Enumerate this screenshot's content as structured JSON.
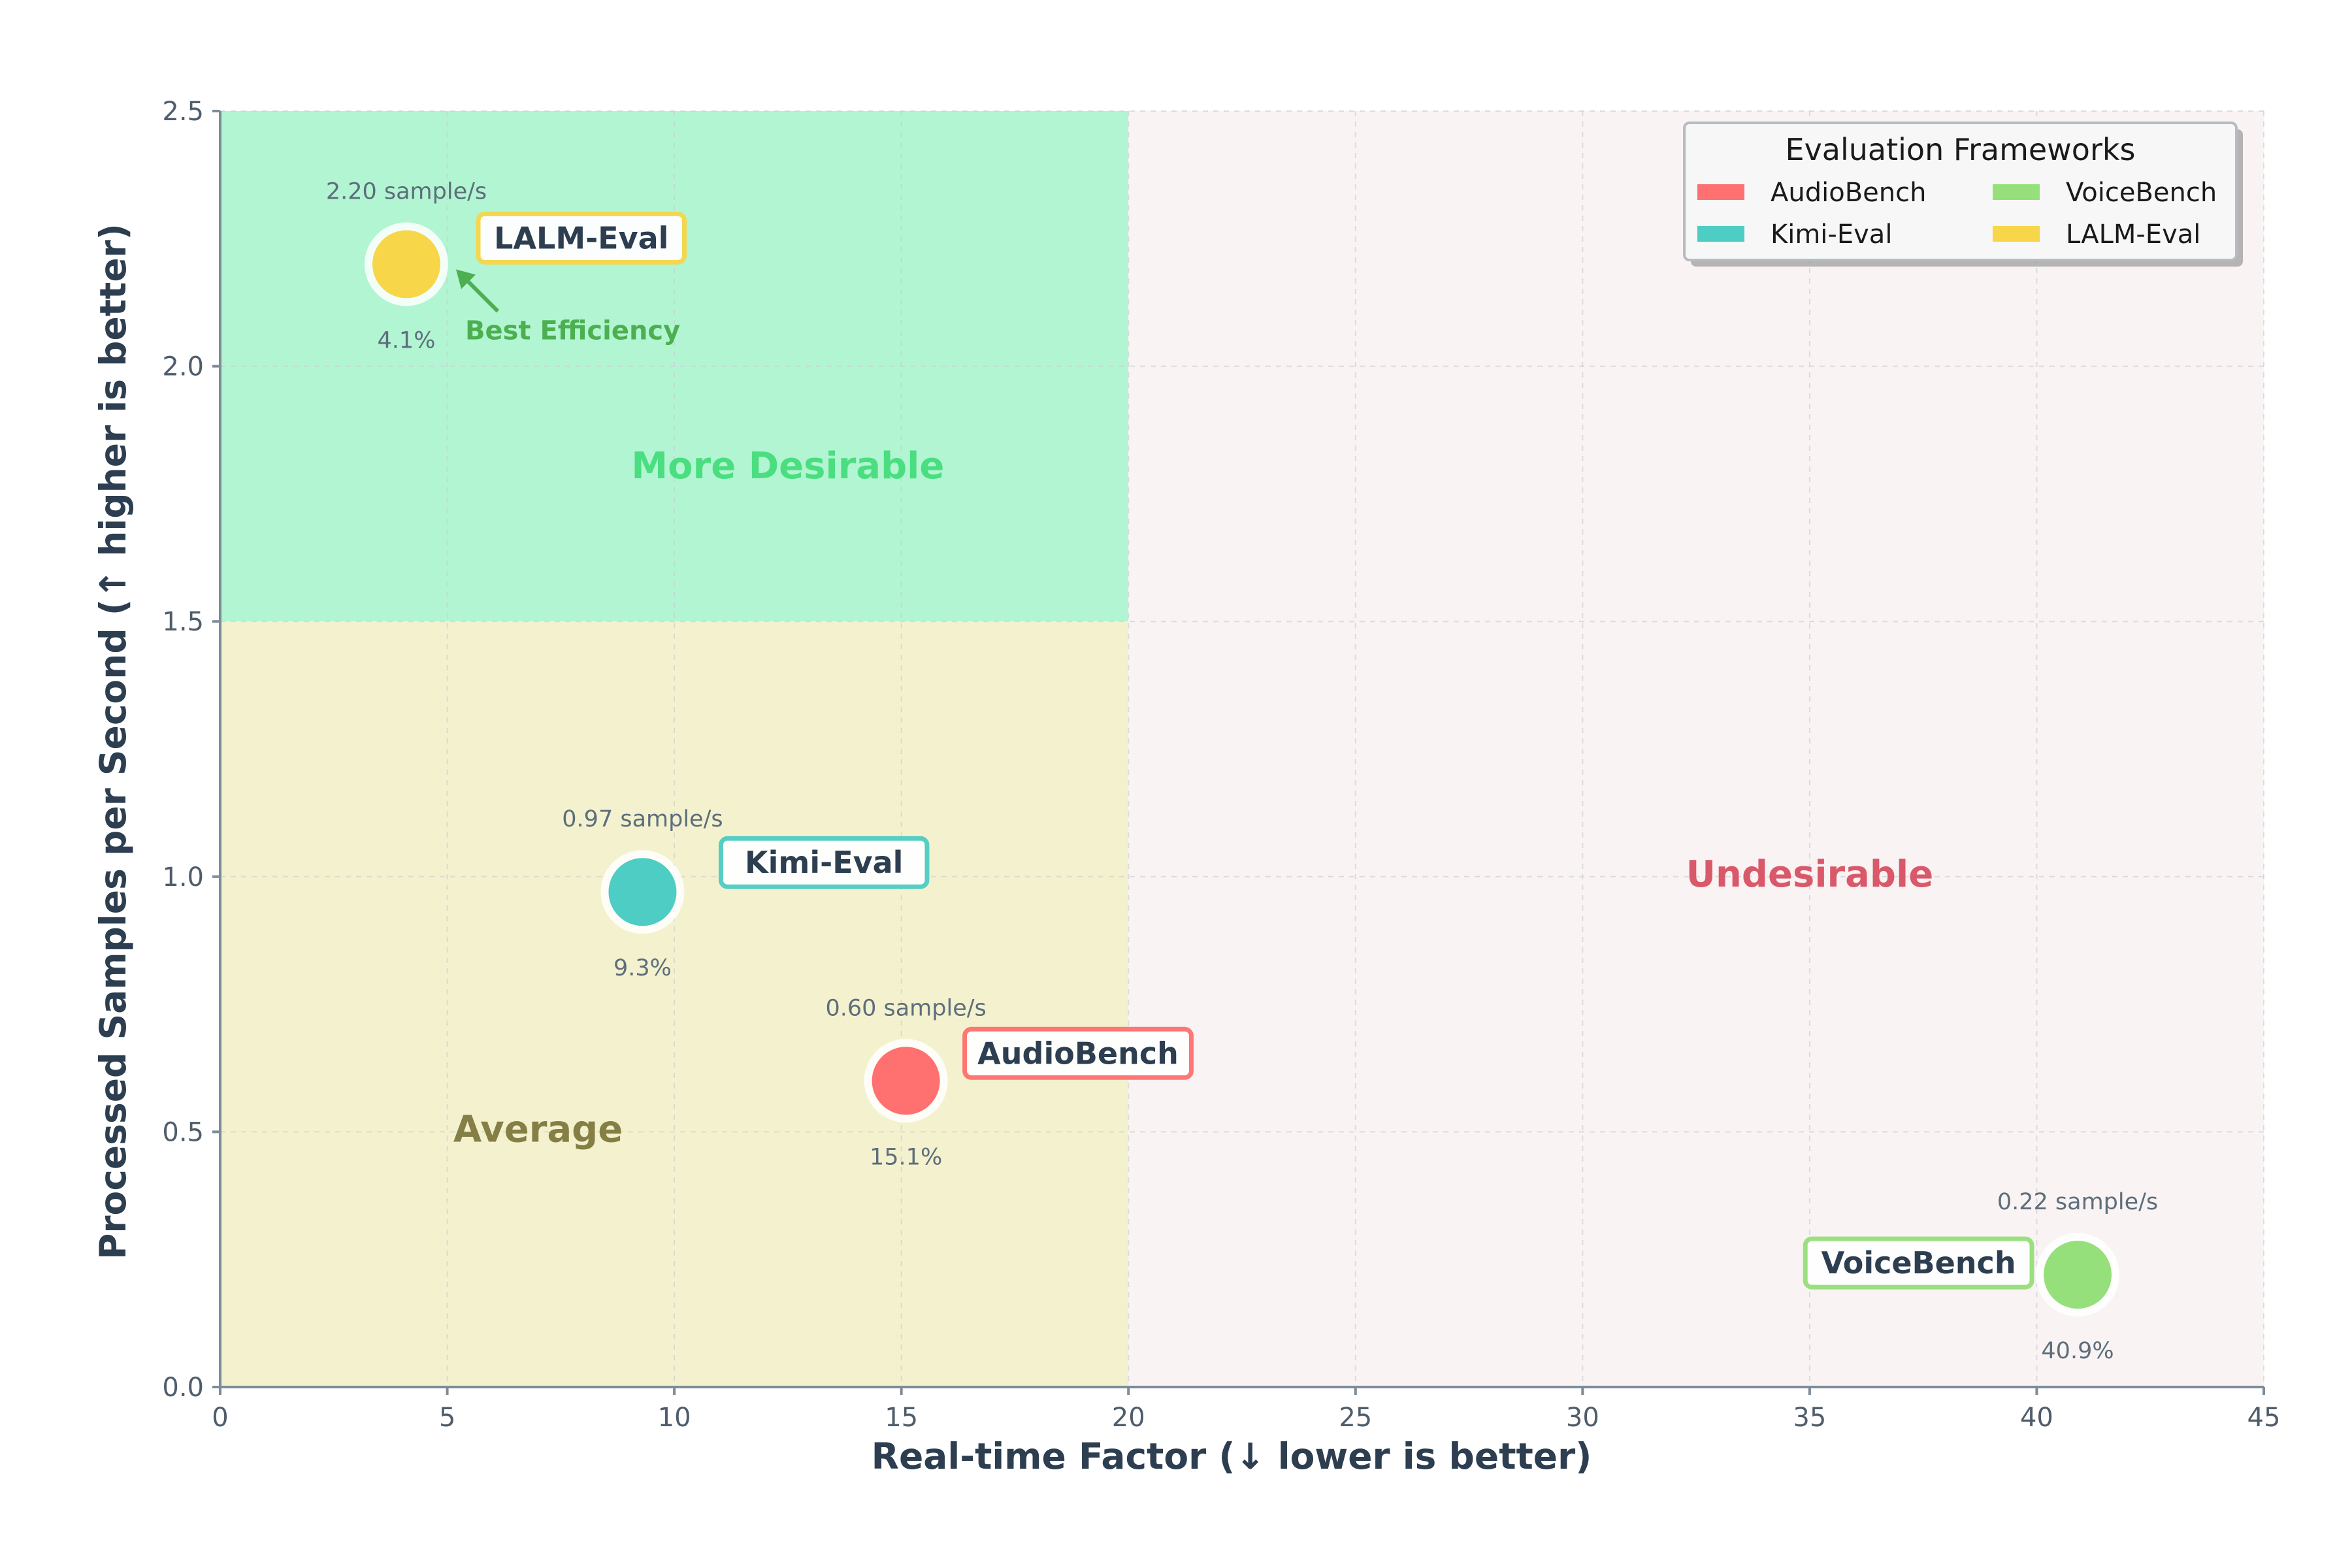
{
  "chart_data": {
    "type": "scatter",
    "xlabel": "Real-time Factor (↓ lower is better)",
    "ylabel": "Processed Samples per Second (↑ higher is better)",
    "xlim": [
      0,
      45
    ],
    "ylim": [
      0,
      2.5
    ],
    "xticks": [
      "0",
      "5",
      "10",
      "15",
      "20",
      "25",
      "30",
      "35",
      "40",
      "45"
    ],
    "yticks": [
      "0.0",
      "0.5",
      "1.0",
      "1.5",
      "2.0",
      "2.5"
    ],
    "grid": true,
    "legend": {
      "title": "Evaluation Frameworks",
      "position": "top-right"
    },
    "regions": [
      {
        "label": "More Desirable",
        "x": [
          0,
          20
        ],
        "y": [
          1.5,
          2.5
        ],
        "color": "#b2f5d2",
        "label_color": "#4ade80"
      },
      {
        "label": "Average",
        "x": [
          0,
          20
        ],
        "y": [
          0,
          1.5
        ],
        "color": "#f4f2ce",
        "label_color": "#857f45"
      },
      {
        "label": "Undesirable",
        "x": [
          20,
          45
        ],
        "y": [
          0,
          2.5
        ],
        "color": "#f9f3f3",
        "label_color": "#d9596a"
      }
    ],
    "series": [
      {
        "name": "AudioBench",
        "x": 15.1,
        "y": 0.6,
        "throughput_label": "0.60 sample/s",
        "pct_label": "15.1%",
        "color": "#ff7070"
      },
      {
        "name": "Kimi-Eval",
        "x": 9.3,
        "y": 0.97,
        "throughput_label": "0.97 sample/s",
        "pct_label": "9.3%",
        "color": "#4ecdc4"
      },
      {
        "name": "VoiceBench",
        "x": 40.9,
        "y": 0.22,
        "throughput_label": "0.22 sample/s",
        "pct_label": "40.9%",
        "color": "#95e07a"
      },
      {
        "name": "LALM-Eval",
        "x": 4.1,
        "y": 2.2,
        "throughput_label": "2.20 sample/s",
        "pct_label": "4.1%",
        "color": "#f7d64a"
      }
    ],
    "annotations": [
      {
        "text": "Best Efficiency",
        "target": "LALM-Eval",
        "color": "#4caf50"
      }
    ]
  }
}
